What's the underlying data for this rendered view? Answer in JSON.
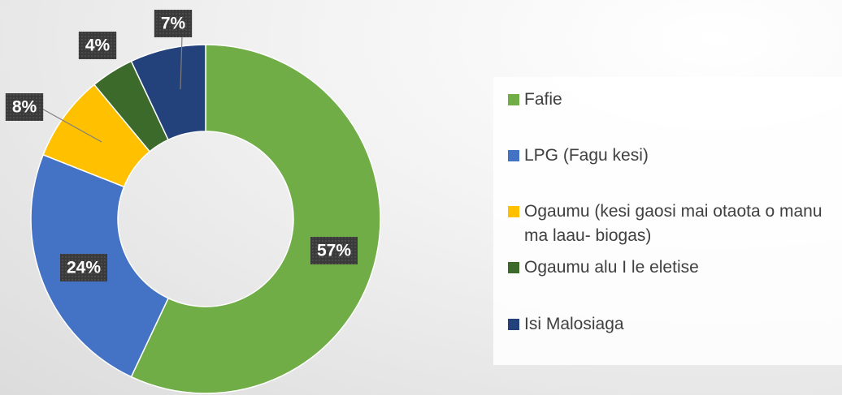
{
  "chart_data": {
    "type": "donut",
    "categories": [
      "Fafie",
      "LPG (Fagu kesi)",
      "Ogaumu (kesi gaosi mai otaota o manu ma laau- biogas)",
      "Ogaumu alu I le eletise",
      "Isi Malosiaga"
    ],
    "values": [
      57,
      24,
      8,
      4,
      7
    ],
    "value_labels": [
      "57%",
      "24%",
      "8%",
      "4%",
      "7%"
    ],
    "colors": [
      "#70ad47",
      "#4472c4",
      "#ffc000",
      "#3b6a2a",
      "#23417a"
    ],
    "legend": "right"
  }
}
